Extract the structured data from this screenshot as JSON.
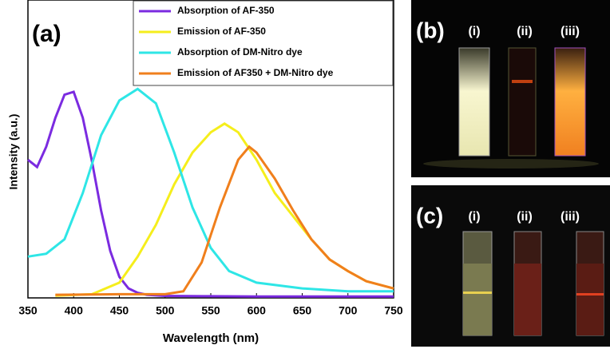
{
  "chart_data": {
    "type": "line",
    "label": "(a)",
    "x_label": "Wavelength (nm)",
    "y_label": "Intensity (a.u.)",
    "xlim": [
      350,
      750
    ],
    "xticks": [
      350,
      400,
      450,
      500,
      550,
      600,
      650,
      700,
      750
    ],
    "ylim": [
      0,
      1
    ],
    "legend": "upper right",
    "series": [
      {
        "name": "Absorption of AF-350",
        "color": "#7b2be0",
        "x": [
          350,
          360,
          370,
          380,
          390,
          400,
          410,
          420,
          430,
          440,
          450,
          460,
          470,
          480,
          500,
          550,
          600,
          650,
          700,
          750
        ],
        "values": [
          0.475,
          0.45,
          0.52,
          0.62,
          0.7,
          0.71,
          0.62,
          0.47,
          0.3,
          0.16,
          0.07,
          0.03,
          0.015,
          0.008,
          0.004,
          0.003,
          0.002,
          0.002,
          0.002,
          0.002
        ]
      },
      {
        "name": "Emission of AF-350",
        "color": "#f5ee1c",
        "x": [
          380,
          420,
          450,
          470,
          490,
          510,
          530,
          550,
          565,
          580,
          600,
          620,
          640,
          660,
          680,
          700,
          720,
          750
        ],
        "values": [
          0.005,
          0.01,
          0.05,
          0.14,
          0.25,
          0.39,
          0.5,
          0.57,
          0.6,
          0.57,
          0.475,
          0.36,
          0.28,
          0.2,
          0.13,
          0.09,
          0.055,
          0.03
        ]
      },
      {
        "name": "Absorption of DM-Nitro dye",
        "color": "#2ee6e6",
        "x": [
          350,
          370,
          390,
          410,
          430,
          450,
          470,
          490,
          510,
          530,
          550,
          570,
          600,
          650,
          700,
          750
        ],
        "values": [
          0.14,
          0.15,
          0.2,
          0.36,
          0.56,
          0.68,
          0.72,
          0.67,
          0.5,
          0.31,
          0.17,
          0.09,
          0.05,
          0.03,
          0.02,
          0.02
        ]
      },
      {
        "name": "Emission of AF350 + DM-Nitro dye",
        "color": "#f07f1c",
        "x": [
          380,
          450,
          500,
          520,
          540,
          560,
          580,
          592,
          600,
          620,
          640,
          660,
          680,
          700,
          720,
          750
        ],
        "values": [
          0.008,
          0.01,
          0.01,
          0.02,
          0.12,
          0.31,
          0.475,
          0.52,
          0.5,
          0.41,
          0.3,
          0.2,
          0.13,
          0.09,
          0.055,
          0.03
        ]
      }
    ]
  },
  "panels": [
    {
      "label": "(b)",
      "samples": [
        "(i)",
        "(ii)",
        "(iii)"
      ]
    },
    {
      "label": "(c)",
      "samples": [
        "(i)",
        "(ii)",
        "(iii)"
      ]
    }
  ]
}
